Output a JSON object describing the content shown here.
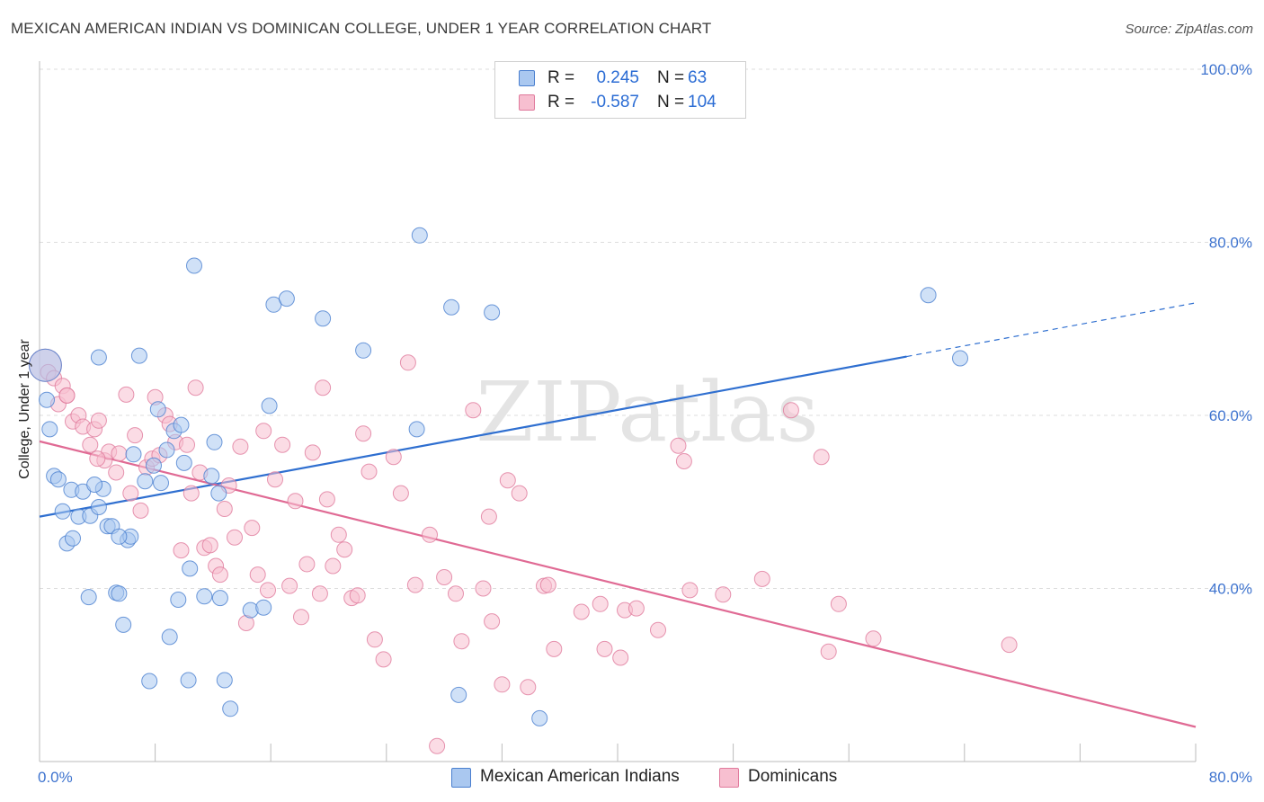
{
  "title": "MEXICAN AMERICAN INDIAN VS DOMINICAN COLLEGE, UNDER 1 YEAR CORRELATION CHART",
  "source": "Source: ZipAtlas.com",
  "watermark": "ZIPatlas",
  "legend_top": {
    "series1": {
      "r_label": "R =",
      "r_value": "0.245",
      "n_label": "N =",
      "n_value": "63"
    },
    "series2": {
      "r_label": "R =",
      "r_value": "-0.587",
      "n_label": "N =",
      "n_value": "104"
    }
  },
  "legend_bottom": {
    "series1": "Mexican American Indians",
    "series2": "Dominicans"
  },
  "colors": {
    "blue_fill": "#aac8f0",
    "blue_stroke": "#4a7fcf",
    "blue_line": "#2f6fd0",
    "pink_fill": "#f7bfd0",
    "pink_stroke": "#e07a9c",
    "pink_line": "#e06a94",
    "tick_text": "#3f74cf",
    "grid": "#dddddd"
  },
  "chart_data": {
    "type": "scatter",
    "title": "MEXICAN AMERICAN INDIAN VS DOMINICAN COLLEGE, UNDER 1 YEAR CORRELATION CHART",
    "xlabel": "",
    "ylabel": "College, Under 1 year",
    "xlim": [
      0,
      80
    ],
    "ylim": [
      20,
      100
    ],
    "x_tick_labels": [
      "0.0%",
      "80.0%"
    ],
    "y_tick_labels": [
      "40.0%",
      "60.0%",
      "80.0%",
      "100.0%"
    ],
    "y_ticks": [
      40,
      60,
      80,
      100
    ],
    "grid": true,
    "legend_position": "top-center",
    "series": [
      {
        "name": "Mexican American Indians",
        "r": 0.245,
        "n": 63,
        "trend": {
          "x0": 0,
          "y0": 48.3,
          "x1": 60,
          "y1": 66.8,
          "dashed_to_x": 80,
          "dashed_to_y": 73.0
        },
        "points": [
          [
            0.4,
            65.8
          ],
          [
            0.5,
            61.8
          ],
          [
            0.7,
            58.4
          ],
          [
            1.0,
            53.0
          ],
          [
            1.3,
            52.6
          ],
          [
            1.6,
            48.9
          ],
          [
            1.9,
            45.2
          ],
          [
            2.2,
            51.4
          ],
          [
            2.3,
            45.8
          ],
          [
            2.7,
            48.3
          ],
          [
            3.0,
            51.2
          ],
          [
            3.4,
            39.0
          ],
          [
            3.5,
            48.4
          ],
          [
            4.1,
            49.4
          ],
          [
            4.1,
            66.7
          ],
          [
            4.4,
            51.5
          ],
          [
            4.7,
            47.2
          ],
          [
            5.0,
            47.2
          ],
          [
            5.3,
            39.5
          ],
          [
            5.5,
            39.4
          ],
          [
            5.8,
            35.8
          ],
          [
            6.1,
            45.6
          ],
          [
            6.3,
            46.0
          ],
          [
            6.5,
            55.5
          ],
          [
            6.9,
            66.9
          ],
          [
            7.3,
            52.4
          ],
          [
            7.6,
            29.3
          ],
          [
            7.9,
            54.2
          ],
          [
            8.2,
            60.7
          ],
          [
            8.4,
            52.2
          ],
          [
            9.0,
            34.4
          ],
          [
            9.3,
            58.2
          ],
          [
            9.6,
            38.7
          ],
          [
            9.8,
            58.9
          ],
          [
            10.0,
            54.5
          ],
          [
            10.3,
            29.4
          ],
          [
            10.4,
            42.3
          ],
          [
            10.7,
            77.3
          ],
          [
            11.4,
            39.1
          ],
          [
            11.9,
            53.0
          ],
          [
            12.1,
            56.9
          ],
          [
            12.4,
            51.0
          ],
          [
            12.5,
            38.9
          ],
          [
            12.8,
            29.4
          ],
          [
            13.2,
            26.1
          ],
          [
            14.6,
            37.5
          ],
          [
            15.5,
            37.8
          ],
          [
            15.9,
            61.1
          ],
          [
            16.2,
            72.8
          ],
          [
            17.1,
            73.5
          ],
          [
            19.6,
            71.2
          ],
          [
            22.4,
            67.5
          ],
          [
            26.1,
            58.4
          ],
          [
            26.3,
            80.8
          ],
          [
            28.5,
            72.5
          ],
          [
            29.0,
            27.7
          ],
          [
            31.3,
            71.9
          ],
          [
            34.6,
            25.0
          ],
          [
            61.5,
            73.9
          ],
          [
            63.7,
            66.6
          ],
          [
            5.5,
            46.0
          ],
          [
            8.8,
            56.0
          ],
          [
            3.8,
            52.0
          ]
        ]
      },
      {
        "name": "Dominicans",
        "r": -0.587,
        "n": 104,
        "trend": {
          "x0": 0,
          "y0": 57.0,
          "x1": 80,
          "y1": 24.0
        },
        "points": [
          [
            0.4,
            65.8
          ],
          [
            0.6,
            65.0
          ],
          [
            1.0,
            64.3
          ],
          [
            1.3,
            61.3
          ],
          [
            1.6,
            63.4
          ],
          [
            1.9,
            62.3
          ],
          [
            2.3,
            59.3
          ],
          [
            2.7,
            60.0
          ],
          [
            3.0,
            58.7
          ],
          [
            3.5,
            56.6
          ],
          [
            3.8,
            58.4
          ],
          [
            4.1,
            59.4
          ],
          [
            4.5,
            54.8
          ],
          [
            4.8,
            55.8
          ],
          [
            5.3,
            53.4
          ],
          [
            5.5,
            55.6
          ],
          [
            6.0,
            62.4
          ],
          [
            6.3,
            51.0
          ],
          [
            6.6,
            57.7
          ],
          [
            7.0,
            49.0
          ],
          [
            7.4,
            54.0
          ],
          [
            7.8,
            55.0
          ],
          [
            8.0,
            62.1
          ],
          [
            8.3,
            55.4
          ],
          [
            8.7,
            60.0
          ],
          [
            9.0,
            59.0
          ],
          [
            9.4,
            56.9
          ],
          [
            9.8,
            44.4
          ],
          [
            10.2,
            56.6
          ],
          [
            10.5,
            51.0
          ],
          [
            10.8,
            63.2
          ],
          [
            11.1,
            53.4
          ],
          [
            11.4,
            44.7
          ],
          [
            11.8,
            45.0
          ],
          [
            12.2,
            42.6
          ],
          [
            12.5,
            41.6
          ],
          [
            12.8,
            49.2
          ],
          [
            13.1,
            51.9
          ],
          [
            13.5,
            45.9
          ],
          [
            13.9,
            56.4
          ],
          [
            14.3,
            36.0
          ],
          [
            14.7,
            47.0
          ],
          [
            15.1,
            41.6
          ],
          [
            15.5,
            58.2
          ],
          [
            15.8,
            39.8
          ],
          [
            16.3,
            52.6
          ],
          [
            16.8,
            56.6
          ],
          [
            17.3,
            40.3
          ],
          [
            17.7,
            50.1
          ],
          [
            18.1,
            36.7
          ],
          [
            18.5,
            42.8
          ],
          [
            18.9,
            55.7
          ],
          [
            19.4,
            39.4
          ],
          [
            19.6,
            63.2
          ],
          [
            19.9,
            50.3
          ],
          [
            20.3,
            42.6
          ],
          [
            20.7,
            46.2
          ],
          [
            21.1,
            44.5
          ],
          [
            21.6,
            38.9
          ],
          [
            22.0,
            39.2
          ],
          [
            22.4,
            57.9
          ],
          [
            22.8,
            53.5
          ],
          [
            23.2,
            34.1
          ],
          [
            23.8,
            31.8
          ],
          [
            24.5,
            55.2
          ],
          [
            25.0,
            51.0
          ],
          [
            25.5,
            66.1
          ],
          [
            26.0,
            40.4
          ],
          [
            27.0,
            46.2
          ],
          [
            28.0,
            41.3
          ],
          [
            28.8,
            39.4
          ],
          [
            29.2,
            33.9
          ],
          [
            30.0,
            60.6
          ],
          [
            30.7,
            40.0
          ],
          [
            31.1,
            48.3
          ],
          [
            31.3,
            36.2
          ],
          [
            32.0,
            28.9
          ],
          [
            32.4,
            52.5
          ],
          [
            33.2,
            51.0
          ],
          [
            33.8,
            28.6
          ],
          [
            34.9,
            40.3
          ],
          [
            35.2,
            40.4
          ],
          [
            35.6,
            33.0
          ],
          [
            37.5,
            37.3
          ],
          [
            38.8,
            38.2
          ],
          [
            39.1,
            33.0
          ],
          [
            40.2,
            32.0
          ],
          [
            40.5,
            37.5
          ],
          [
            41.3,
            37.7
          ],
          [
            42.8,
            35.2
          ],
          [
            44.2,
            56.5
          ],
          [
            44.6,
            54.7
          ],
          [
            45.0,
            39.8
          ],
          [
            47.3,
            39.3
          ],
          [
            50.0,
            41.1
          ],
          [
            52.0,
            60.6
          ],
          [
            54.1,
            55.2
          ],
          [
            54.6,
            32.7
          ],
          [
            55.3,
            38.2
          ],
          [
            57.7,
            34.2
          ],
          [
            67.1,
            33.5
          ],
          [
            27.5,
            21.8
          ],
          [
            1.9,
            62.3
          ],
          [
            4.0,
            55.0
          ]
        ]
      }
    ]
  }
}
